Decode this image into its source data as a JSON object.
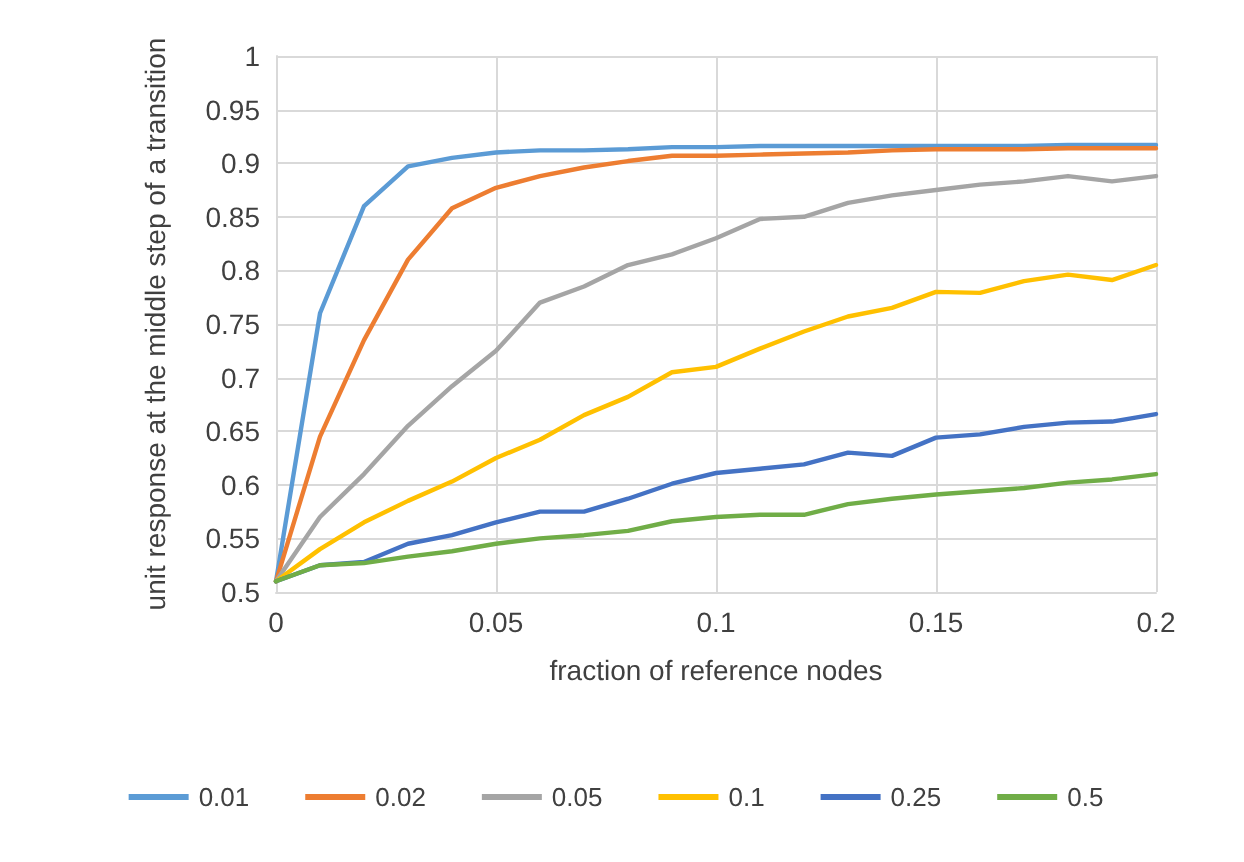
{
  "chart_data": {
    "type": "line",
    "xlabel": "fraction of reference nodes",
    "ylabel": "unit response at the middle step of a transition",
    "x": [
      0,
      0.01,
      0.02,
      0.03,
      0.04,
      0.05,
      0.06,
      0.07,
      0.08,
      0.09,
      0.1,
      0.11,
      0.12,
      0.13,
      0.14,
      0.15,
      0.16,
      0.17,
      0.18,
      0.19,
      0.2
    ],
    "series": [
      {
        "name": "0.01",
        "color": "#5b9bd5",
        "values": [
          0.51,
          0.76,
          0.86,
          0.897,
          0.905,
          0.91,
          0.912,
          0.912,
          0.913,
          0.915,
          0.915,
          0.916,
          0.916,
          0.916,
          0.916,
          0.916,
          0.916,
          0.916,
          0.917,
          0.917,
          0.917
        ]
      },
      {
        "name": "0.02",
        "color": "#ed7d31",
        "values": [
          0.51,
          0.645,
          0.735,
          0.81,
          0.858,
          0.877,
          0.888,
          0.896,
          0.902,
          0.907,
          0.907,
          0.908,
          0.909,
          0.91,
          0.912,
          0.913,
          0.913,
          0.913,
          0.914,
          0.914,
          0.914
        ]
      },
      {
        "name": "0.05",
        "color": "#a5a5a5",
        "values": [
          0.51,
          0.57,
          0.61,
          0.655,
          0.692,
          0.725,
          0.77,
          0.785,
          0.805,
          0.815,
          0.83,
          0.848,
          0.85,
          0.863,
          0.87,
          0.875,
          0.88,
          0.883,
          0.888,
          0.883,
          0.888
        ]
      },
      {
        "name": "0.1",
        "color": "#ffc000",
        "values": [
          0.51,
          0.54,
          0.565,
          0.585,
          0.603,
          0.625,
          0.642,
          0.665,
          0.682,
          0.705,
          0.71,
          0.727,
          0.743,
          0.757,
          0.765,
          0.78,
          0.779,
          0.79,
          0.796,
          0.791,
          0.805
        ]
      },
      {
        "name": "0.25",
        "color": "#4472c4",
        "values": [
          0.51,
          0.525,
          0.528,
          0.545,
          0.553,
          0.565,
          0.575,
          0.575,
          0.587,
          0.601,
          0.611,
          0.615,
          0.619,
          0.63,
          0.627,
          0.644,
          0.647,
          0.654,
          0.658,
          0.659,
          0.666
        ]
      },
      {
        "name": "0.5",
        "color": "#70ad47",
        "values": [
          0.51,
          0.525,
          0.527,
          0.533,
          0.538,
          0.545,
          0.55,
          0.553,
          0.557,
          0.566,
          0.57,
          0.572,
          0.572,
          0.582,
          0.587,
          0.591,
          0.594,
          0.597,
          0.602,
          0.605,
          0.61
        ]
      }
    ],
    "xlim": [
      0,
      0.2
    ],
    "xticks": [
      0,
      0.05,
      0.1,
      0.15,
      0.2
    ],
    "ylim": [
      0.5,
      1
    ],
    "yticks": [
      0.5,
      0.55,
      0.6,
      0.65,
      0.7,
      0.75,
      0.8,
      0.85,
      0.9,
      0.95,
      1
    ],
    "grid": true,
    "legend": "bottom",
    "marker": "none",
    "line_style": "solid"
  }
}
